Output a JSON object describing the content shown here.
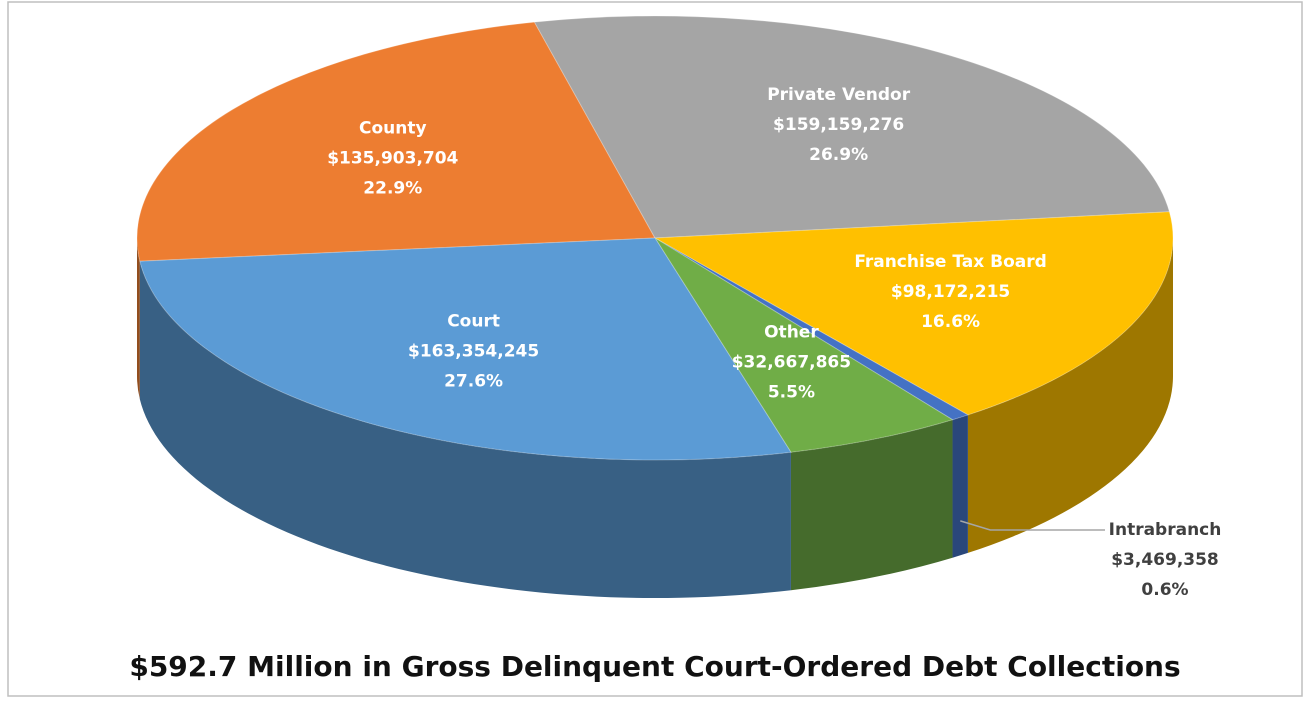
{
  "chart_data": {
    "type": "pie",
    "title": "$592.7 Million in Gross Delinquent Court-Ordered Debt Collections",
    "categories": [
      "County",
      "Private Vendor",
      "Franchise Tax Board",
      "Intrabranch",
      "Other",
      "Court"
    ],
    "values": [
      135903704,
      159159276,
      98172215,
      3469358,
      32667865,
      163354245
    ],
    "value_labels": [
      "$135,903,704",
      "$159,159,276",
      "$98,172,215",
      "$3,469,358",
      "$32,667,865",
      "$163,354,245"
    ],
    "percents": [
      22.9,
      26.9,
      16.6,
      0.6,
      5.5,
      27.6
    ],
    "percent_labels": [
      "22.9%",
      "26.9%",
      "16.6%",
      "0.6%",
      "5.5%",
      "27.6%"
    ],
    "colors": [
      "#ed7d31",
      "#a5a5a5",
      "#ffc000",
      "#4472c4",
      "#70ad47",
      "#5b9bd5"
    ]
  }
}
